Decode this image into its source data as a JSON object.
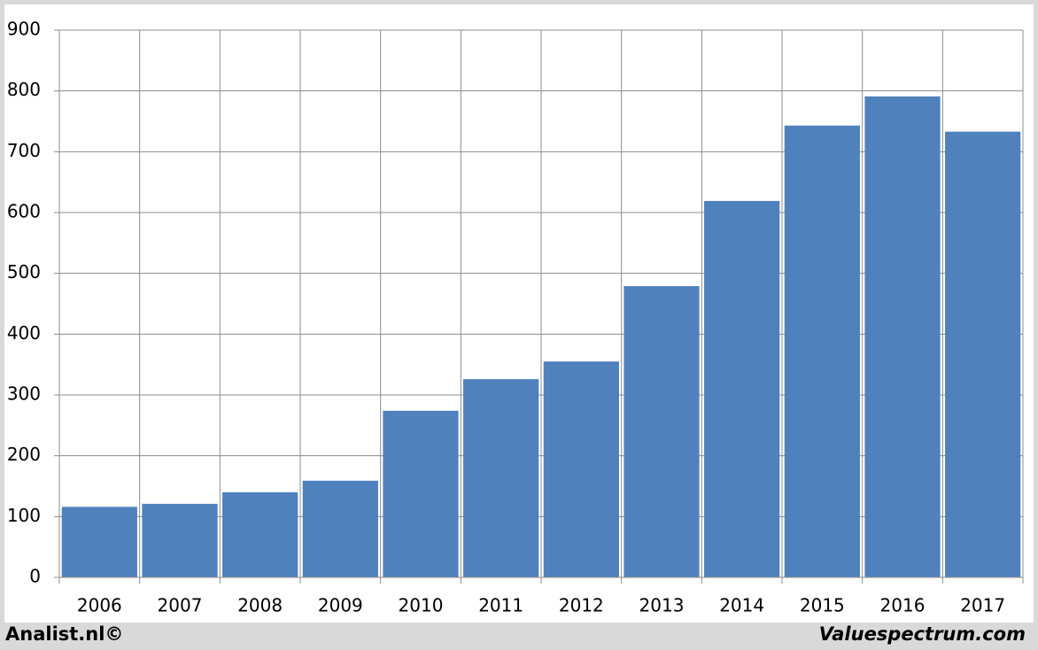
{
  "chart_data": {
    "type": "bar",
    "categories": [
      "2006",
      "2007",
      "2008",
      "2009",
      "2010",
      "2011",
      "2012",
      "2013",
      "2014",
      "2015",
      "2016",
      "2017"
    ],
    "values": [
      116,
      121,
      140,
      159,
      274,
      326,
      355,
      479,
      619,
      743,
      791,
      733
    ],
    "color": "#4f81bd",
    "ylim": [
      0,
      900
    ],
    "yticks": [
      0,
      100,
      200,
      300,
      400,
      500,
      600,
      700,
      800,
      900
    ],
    "grid": true
  },
  "footer": {
    "left": "Analist.nl©",
    "right": "Valuespectrum.com"
  }
}
